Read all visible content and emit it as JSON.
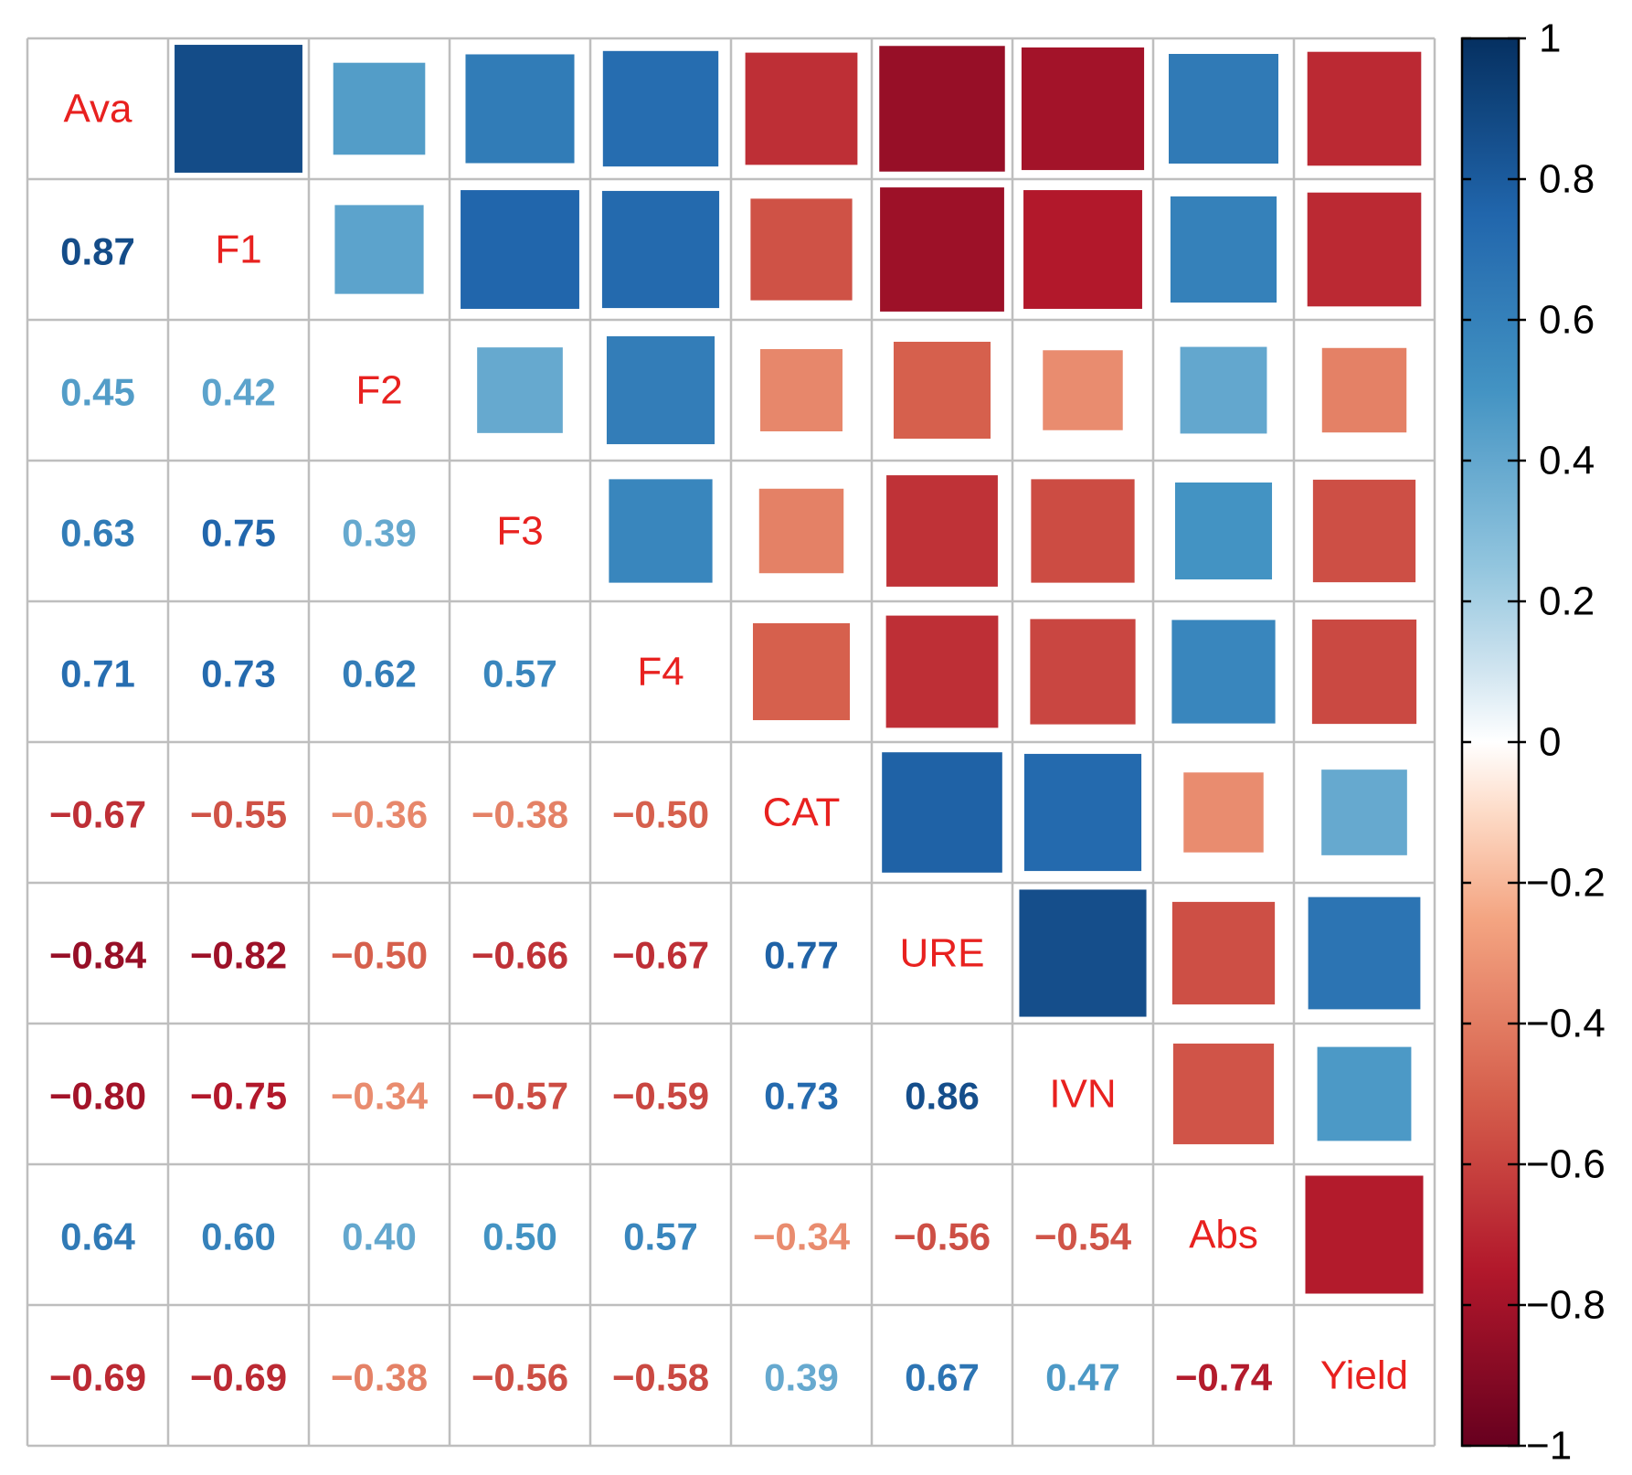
{
  "chart_data": {
    "type": "heatmap",
    "variables": [
      "Ava",
      "F1",
      "F2",
      "F3",
      "F4",
      "CAT",
      "URE",
      "IVN",
      "Abs",
      "Yield"
    ],
    "matrix": [
      [
        1.0,
        0.87,
        0.45,
        0.63,
        0.71,
        -0.67,
        -0.84,
        -0.8,
        0.64,
        -0.69
      ],
      [
        0.87,
        1.0,
        0.42,
        0.75,
        0.73,
        -0.55,
        -0.82,
        -0.75,
        0.6,
        -0.69
      ],
      [
        0.45,
        0.42,
        1.0,
        0.39,
        0.62,
        -0.36,
        -0.5,
        -0.34,
        0.4,
        -0.38
      ],
      [
        0.63,
        0.75,
        0.39,
        1.0,
        0.57,
        -0.38,
        -0.66,
        -0.57,
        0.5,
        -0.56
      ],
      [
        0.71,
        0.73,
        0.62,
        0.57,
        1.0,
        -0.5,
        -0.67,
        -0.59,
        0.57,
        -0.58
      ],
      [
        -0.67,
        -0.55,
        -0.36,
        -0.38,
        -0.5,
        1.0,
        0.77,
        0.73,
        -0.34,
        0.39
      ],
      [
        -0.84,
        -0.82,
        -0.5,
        -0.66,
        -0.67,
        0.77,
        1.0,
        0.86,
        -0.56,
        0.67
      ],
      [
        -0.8,
        -0.75,
        -0.34,
        -0.57,
        -0.59,
        0.73,
        0.86,
        1.0,
        -0.54,
        0.47
      ],
      [
        0.64,
        0.6,
        0.4,
        0.5,
        0.57,
        -0.34,
        -0.56,
        -0.54,
        1.0,
        -0.74
      ],
      [
        -0.69,
        -0.69,
        -0.38,
        -0.56,
        -0.58,
        0.39,
        0.67,
        0.47,
        -0.74,
        1.0
      ]
    ],
    "lower_triangle": "number",
    "upper_triangle": "square",
    "diagonal": "variable-name",
    "colorbar": {
      "range": [
        -1,
        1
      ],
      "ticks": [
        "1",
        "0.8",
        "0.6",
        "0.4",
        "0.2",
        "0",
        "−0.2",
        "−0.4",
        "−0.6",
        "−0.8",
        "−1"
      ],
      "tick_values": [
        1,
        0.8,
        0.6,
        0.4,
        0.2,
        0,
        -0.2,
        -0.4,
        -0.6,
        -0.8,
        -1
      ],
      "placement": "right"
    },
    "colors": {
      "negative_strong": "#67001f",
      "negative_mid": "#d6604d",
      "negative_light": "#fddbc7",
      "neutral": "#ffffff",
      "positive_light": "#d1e5f0",
      "positive_mid": "#4393c3",
      "positive_strong": "#053061",
      "diagonal_label": "#e8211f",
      "grid": "#bebebe"
    },
    "title": "",
    "xlabel": "",
    "ylabel": ""
  }
}
